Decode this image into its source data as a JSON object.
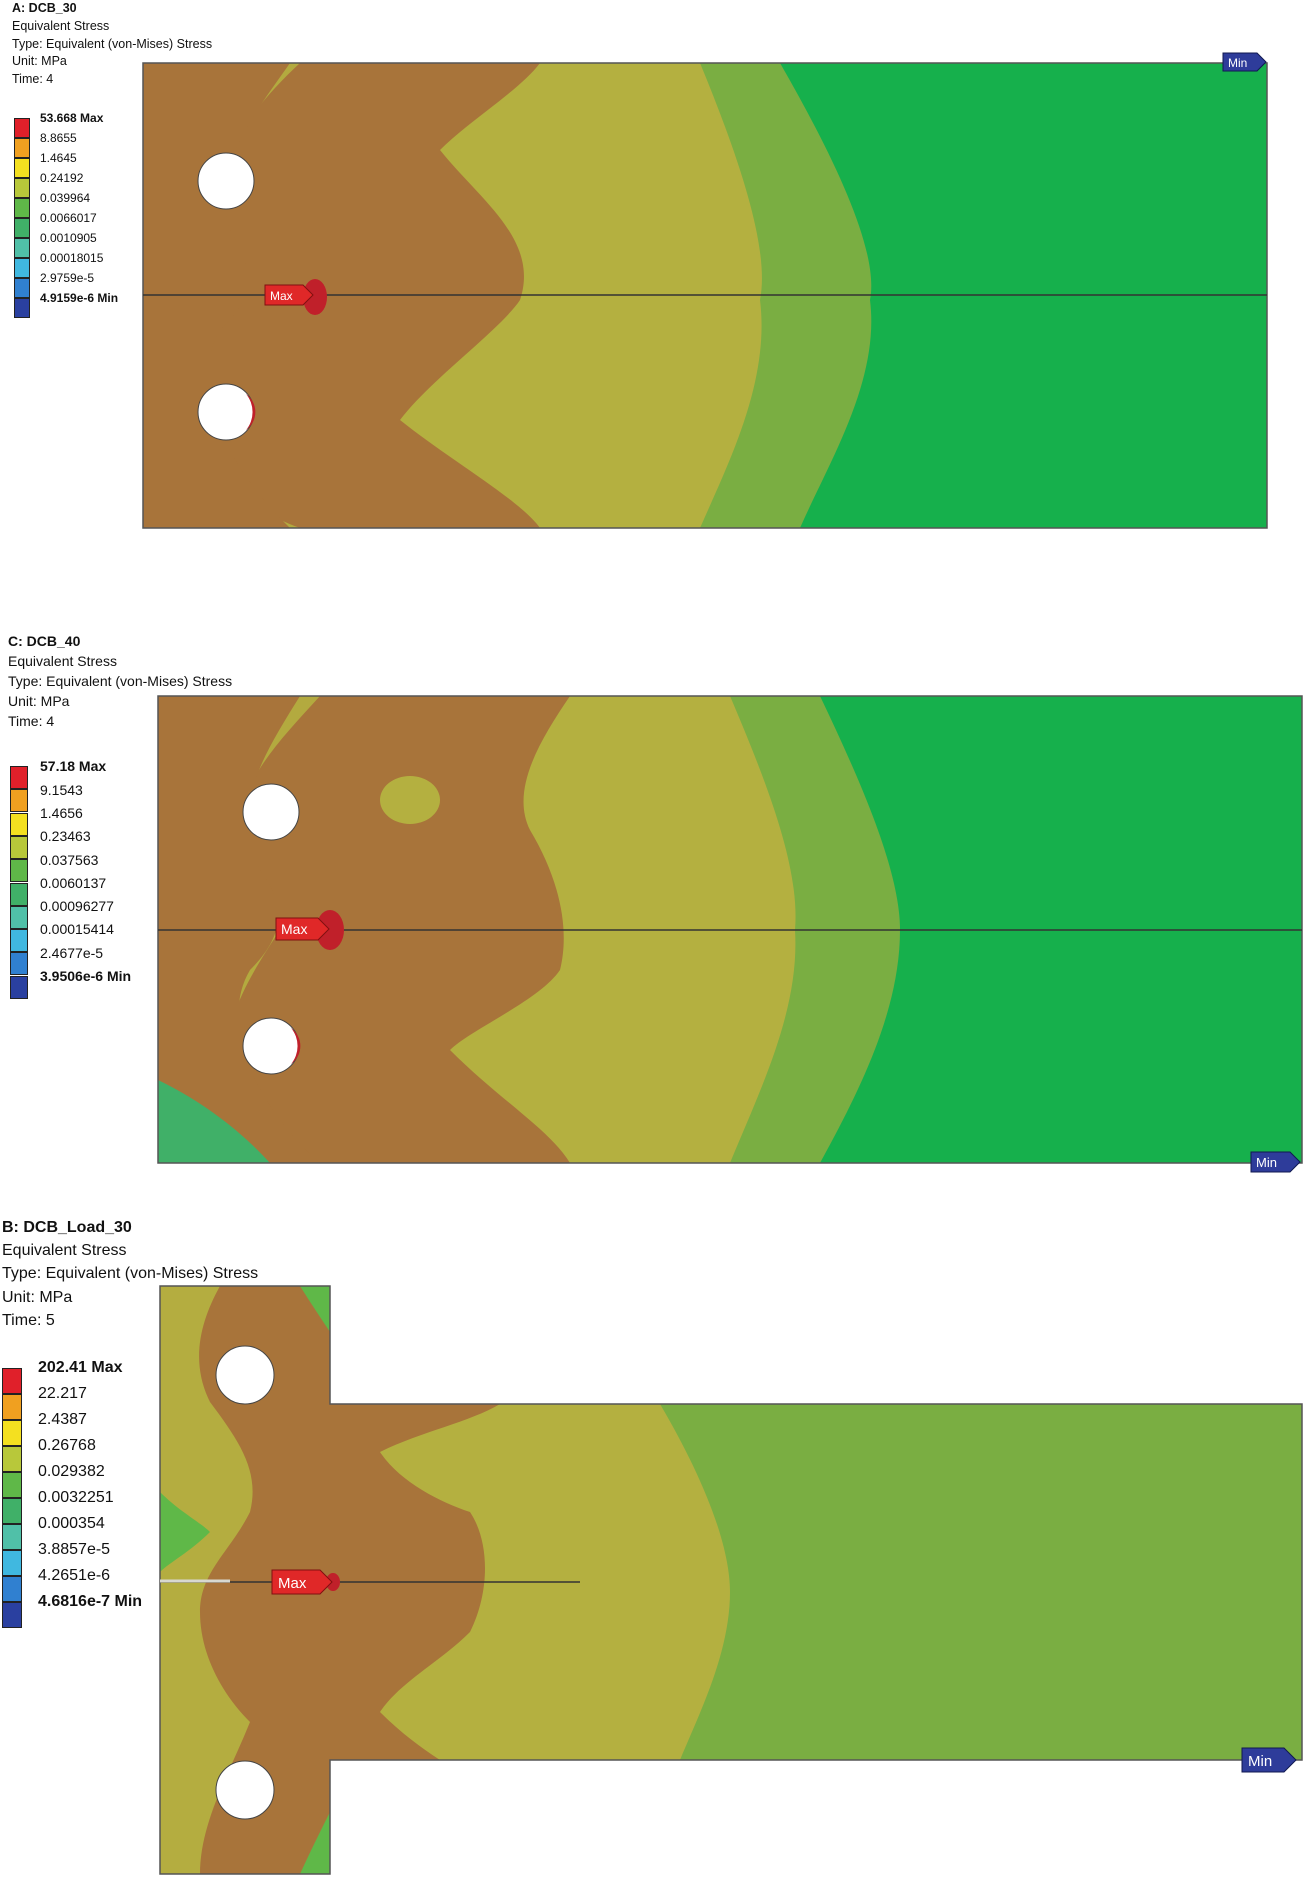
{
  "panels": [
    {
      "title": "A: DCB_30",
      "result": "Equivalent Stress",
      "type": "Type: Equivalent (von-Mises) Stress",
      "unit": "Unit: MPa",
      "time": "Time: 4",
      "legend": [
        "53.668 Max",
        "8.8655",
        "1.4645",
        "0.24192",
        "0.039964",
        "0.0066017",
        "0.0010905",
        "0.00018015",
        "2.9759e-5",
        "4.9159e-6 Min"
      ],
      "max_tag": "Max",
      "min_tag": "Min"
    },
    {
      "title": "C: DCB_40",
      "result": "Equivalent Stress",
      "type": "Type: Equivalent (von-Mises) Stress",
      "unit": "Unit: MPa",
      "time": "Time: 4",
      "legend": [
        "57.18 Max",
        "9.1543",
        "1.4656",
        "0.23463",
        "0.037563",
        "0.0060137",
        "0.00096277",
        "0.00015414",
        "2.4677e-5",
        "3.9506e-6 Min"
      ],
      "max_tag": "Max",
      "min_tag": "Min"
    },
    {
      "title": "B: DCB_Load_30",
      "result": "Equivalent Stress",
      "type": "Type: Equivalent (von-Mises) Stress",
      "unit": "Unit: MPa",
      "time": "Time: 5",
      "legend": [
        "202.41 Max",
        "22.217",
        "2.4387",
        "0.26768",
        "0.029382",
        "0.0032251",
        "0.000354",
        "3.8857e-5",
        "4.2651e-6",
        "4.6816e-7 Min"
      ],
      "max_tag": "Max",
      "min_tag": "Min"
    }
  ],
  "colors": {
    "legend": [
      "#e0202a",
      "#f0a020",
      "#f4e020",
      "#b8c83a",
      "#5fb848",
      "#40b068",
      "#50c0a8",
      "#40b8e0",
      "#3080d0",
      "#2a40a0"
    ],
    "contour_red": "#c0202a",
    "contour_brown": "#a8743a",
    "contour_olive": "#b4b040",
    "contour_green_light": "#7aae42",
    "contour_green": "#16b04c",
    "tag_max": "#e02828",
    "tag_min": "#2e3c9a"
  }
}
